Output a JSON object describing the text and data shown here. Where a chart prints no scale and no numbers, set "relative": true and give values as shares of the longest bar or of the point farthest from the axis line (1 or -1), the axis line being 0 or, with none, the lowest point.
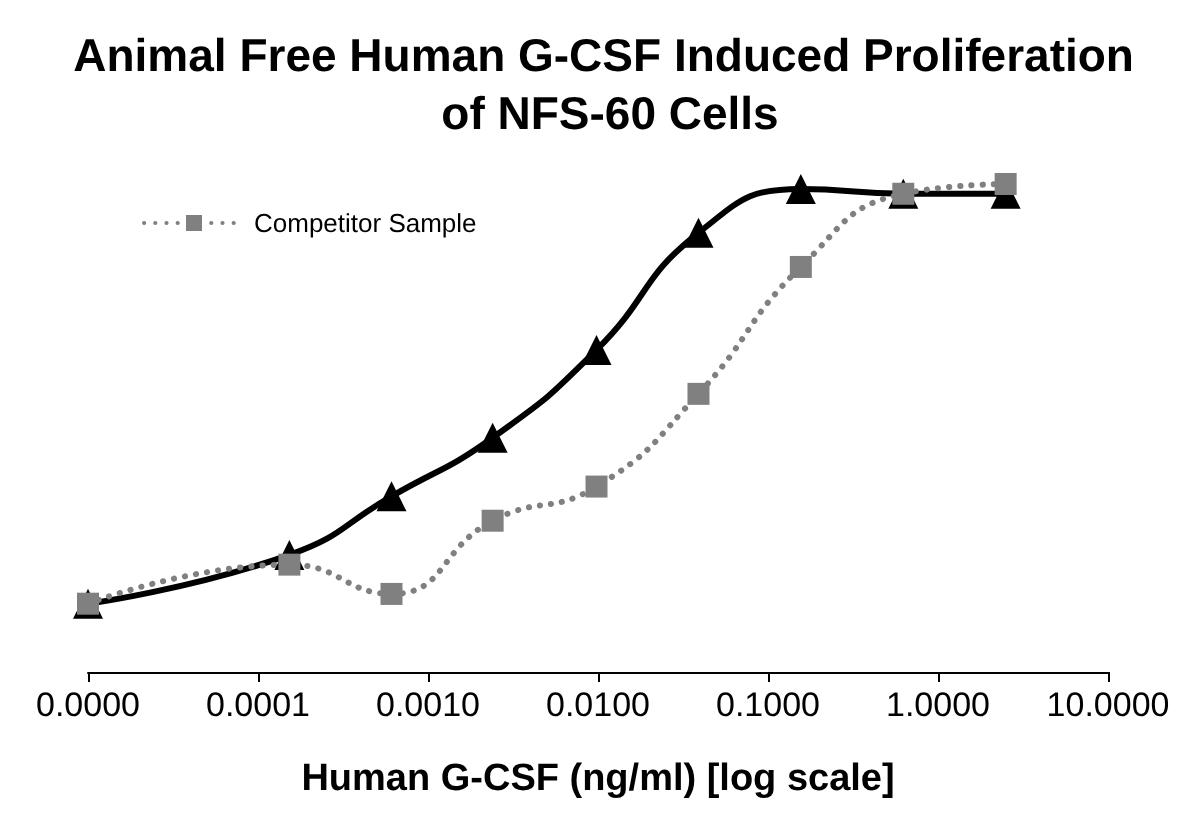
{
  "chart_data": {
    "type": "line",
    "title": "Animal Free Human G-CSF Induced Proliferation of NFS-60 Cells",
    "xlabel": "Human G-CSF (ng/ml) [log scale]",
    "x": [
      1e-05,
      0.000153,
      0.00061,
      0.0024,
      0.0098,
      0.039,
      0.156,
      0.625,
      2.5
    ],
    "series": [
      {
        "color": "#000000",
        "marker": "triangle",
        "line_style": "solid",
        "values": [
          0.14,
          0.24,
          0.36,
          0.48,
          0.66,
          0.9,
          0.99,
          0.98,
          0.98
        ]
      },
      {
        "name": "Competitor Sample",
        "color": "#808080",
        "marker": "square",
        "line_style": "dotted",
        "values": [
          0.14,
          0.22,
          0.16,
          0.31,
          0.38,
          0.57,
          0.83,
          0.98,
          1
        ]
      }
    ],
    "relative": true,
    "log": "x",
    "xlim": [
      1e-05,
      10
    ],
    "xticks": [
      {
        "value": 1e-05,
        "label": "0.0000"
      },
      {
        "value": 0.0001,
        "label": "0.0001"
      },
      {
        "value": 0.001,
        "label": "0.0010"
      },
      {
        "value": 0.01,
        "label": "0.0100"
      },
      {
        "value": 0.1,
        "label": "0.1000"
      },
      {
        "value": 1,
        "label": "1.0000"
      },
      {
        "value": 10,
        "label": "10.0000"
      }
    ],
    "legend": "top left"
  }
}
